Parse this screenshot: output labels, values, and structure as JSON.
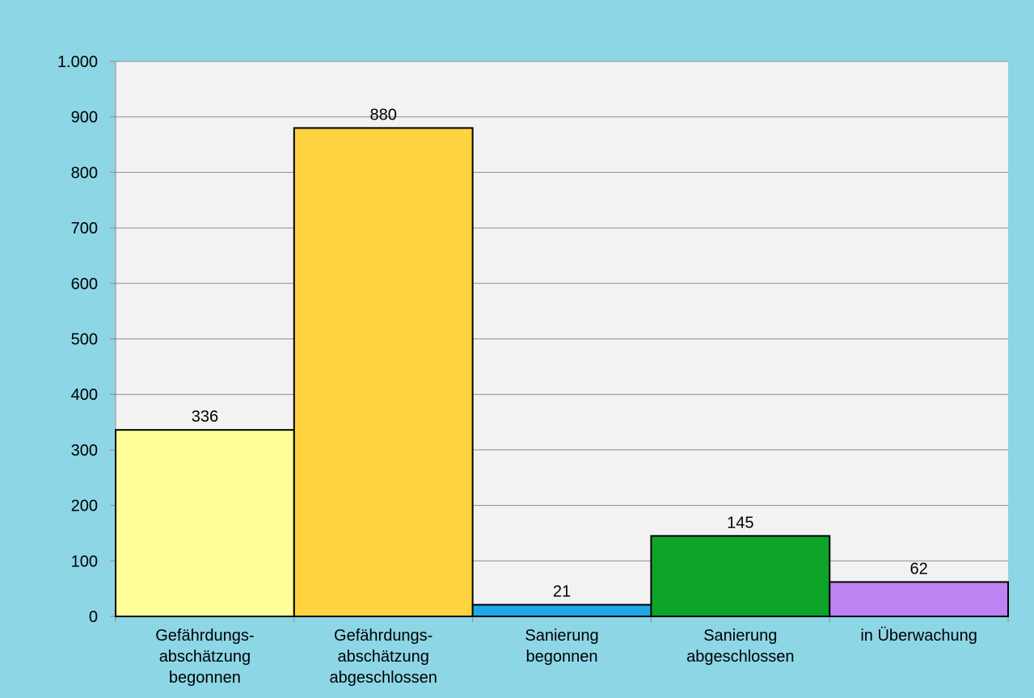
{
  "chart_data": {
    "type": "bar",
    "categories": [
      "Gefährdungs-\nabschätzung\nbegonnen",
      "Gefährdungs-\nabschätzung\nabgeschlossen",
      "Sanierung\nbegonnen",
      "Sanierung\nabgeschlossen",
      "in Überwachung"
    ],
    "values": [
      336,
      880,
      21,
      145,
      62
    ],
    "colors": [
      "#ffff99",
      "#ffd240",
      "#1fa8e8",
      "#0ca52a",
      "#bf82f2"
    ],
    "ylim": [
      0,
      1000
    ],
    "yticks": [
      0,
      100,
      200,
      300,
      400,
      500,
      600,
      700,
      800,
      900,
      {
        "value": 1000,
        "label": "1.000"
      }
    ],
    "grid": true
  }
}
